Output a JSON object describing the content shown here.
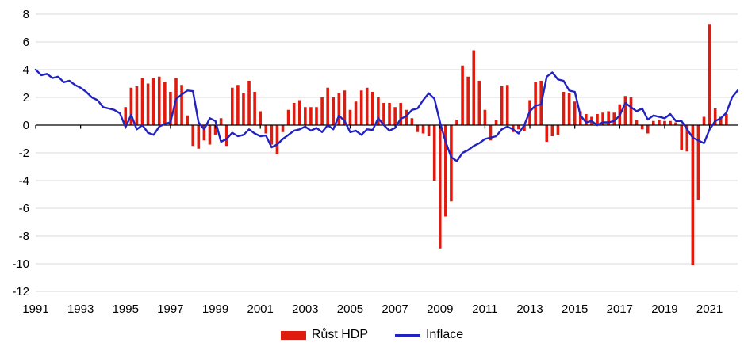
{
  "chart_data": {
    "type": "combo-bar-line",
    "title": "",
    "xlabel": "",
    "ylabel": "",
    "frequency": "quarterly",
    "x_start": "1991Q1",
    "x_end": "2022Q2",
    "ylim": [
      -12,
      8
    ],
    "grid": true,
    "legend_position": "bottom",
    "x_tick_labels": [
      "1991",
      "1993",
      "1995",
      "1997",
      "1999",
      "2001",
      "2003",
      "2005",
      "2007",
      "2009",
      "2011",
      "2013",
      "2015",
      "2017",
      "2019",
      "2021"
    ],
    "y_ticks": [
      8,
      6,
      4,
      2,
      0,
      -2,
      -4,
      -6,
      -8,
      -10,
      -12
    ],
    "series": [
      {
        "name": "Růst HDP",
        "type": "bar",
        "color": "#df1a0f",
        "values": [
          null,
          null,
          null,
          null,
          null,
          null,
          null,
          null,
          null,
          null,
          null,
          null,
          null,
          null,
          null,
          null,
          1.3,
          2.7,
          2.8,
          3.4,
          3.0,
          3.4,
          3.5,
          3.1,
          2.4,
          3.4,
          2.9,
          0.7,
          -1.5,
          -1.7,
          -1.1,
          -1.4,
          -0.7,
          0.5,
          -1.5,
          2.7,
          2.9,
          2.3,
          3.2,
          2.4,
          1.0,
          -0.6,
          -1.4,
          -2.1,
          -0.5,
          1.1,
          1.6,
          1.8,
          1.3,
          1.3,
          1.3,
          2.0,
          2.7,
          2.0,
          2.3,
          2.5,
          1.1,
          1.7,
          2.5,
          2.7,
          2.4,
          2.0,
          1.6,
          1.6,
          1.3,
          1.6,
          1.1,
          0.5,
          -0.5,
          -0.6,
          -0.8,
          -4.0,
          -8.9,
          -6.6,
          -5.5,
          0.4,
          4.3,
          3.5,
          5.4,
          3.2,
          1.1,
          -1.1,
          0.4,
          2.8,
          2.9,
          -0.5,
          -0.3,
          -0.4,
          1.8,
          3.1,
          3.2,
          -1.2,
          -0.8,
          -0.7,
          2.4,
          2.3,
          1.7,
          1.0,
          0.8,
          0.6,
          0.8,
          0.9,
          1.0,
          0.9,
          1.5,
          2.1,
          2.0,
          0.4,
          -0.3,
          -0.6,
          0.3,
          0.4,
          0.3,
          0.3,
          0.2,
          -1.8,
          -1.9,
          -10.1,
          -5.4,
          0.6,
          7.3,
          1.2,
          0.6,
          0.8,
          null,
          null
        ]
      },
      {
        "name": "Inflace",
        "type": "line",
        "color": "#2222c0",
        "values": [
          4.0,
          3.6,
          3.7,
          3.4,
          3.5,
          3.1,
          3.2,
          2.9,
          2.7,
          2.4,
          2.0,
          1.8,
          1.3,
          1.2,
          1.1,
          0.85,
          -0.15,
          0.75,
          -0.3,
          0.0,
          -0.55,
          -0.7,
          -0.1,
          0.1,
          0.2,
          1.9,
          2.2,
          2.5,
          2.45,
          0.2,
          -0.3,
          0.5,
          0.3,
          -1.2,
          -1.0,
          -0.55,
          -0.8,
          -0.7,
          -0.3,
          -0.6,
          -0.8,
          -0.75,
          -1.6,
          -1.4,
          -1.0,
          -0.7,
          -0.4,
          -0.3,
          -0.1,
          -0.4,
          -0.2,
          -0.5,
          0.0,
          -0.3,
          0.7,
          0.3,
          -0.5,
          -0.4,
          -0.7,
          -0.3,
          -0.35,
          0.5,
          0.0,
          -0.4,
          -0.2,
          0.45,
          0.65,
          1.1,
          1.2,
          1.8,
          2.3,
          1.9,
          0.2,
          -1.2,
          -2.3,
          -2.6,
          -2.0,
          -1.8,
          -1.5,
          -1.3,
          -1.0,
          -0.9,
          -0.8,
          -0.3,
          -0.1,
          -0.3,
          -0.6,
          0.0,
          1.0,
          1.4,
          1.5,
          3.5,
          3.8,
          3.3,
          3.2,
          2.5,
          2.4,
          0.7,
          0.2,
          0.3,
          0.0,
          0.2,
          0.2,
          0.3,
          0.7,
          1.6,
          1.3,
          1.0,
          1.2,
          0.4,
          0.7,
          0.6,
          0.5,
          0.8,
          0.3,
          0.3,
          -0.3,
          -0.9,
          -1.1,
          -1.3,
          -0.3,
          0.3,
          0.5,
          0.9,
          2.0,
          2.5
        ]
      }
    ]
  },
  "colors": {
    "grid": "#d9d9d9",
    "axis": "#000000",
    "background": "#ffffff"
  }
}
